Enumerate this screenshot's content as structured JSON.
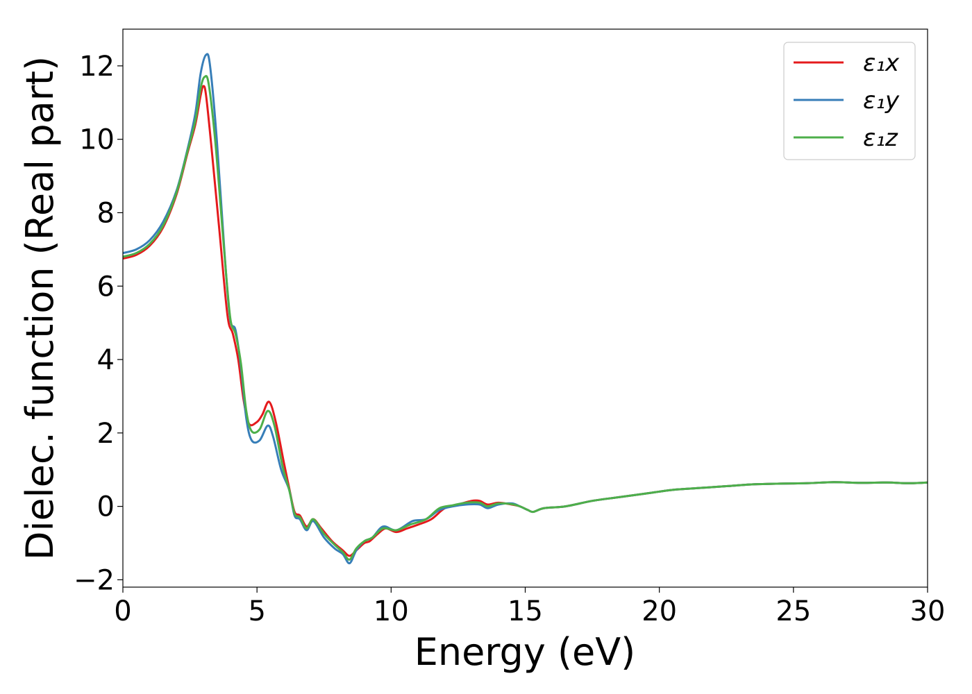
{
  "chart_data": {
    "type": "line",
    "title": "",
    "xlabel": "Energy (eV)",
    "ylabel": "Dielec. function (Real part)",
    "xlim": [
      0,
      30
    ],
    "ylim": [
      -2.2,
      13.0
    ],
    "xticks": [
      0,
      5,
      10,
      15,
      20,
      25,
      30
    ],
    "yticks": [
      -2,
      0,
      2,
      4,
      6,
      8,
      10,
      12
    ],
    "xtick_labels": [
      "0",
      "5",
      "10",
      "15",
      "20",
      "25",
      "30"
    ],
    "ytick_labels": [
      "−2",
      "0",
      "2",
      "4",
      "6",
      "8",
      "10",
      "12"
    ],
    "grid": false,
    "legend_position": "top-right",
    "series": [
      {
        "name": "ε₁x",
        "color": "#e41a1c",
        "points": [
          [
            0,
            6.75
          ],
          [
            0.5,
            6.85
          ],
          [
            1.0,
            7.1
          ],
          [
            1.5,
            7.6
          ],
          [
            2.0,
            8.5
          ],
          [
            2.4,
            9.6
          ],
          [
            2.7,
            10.4
          ],
          [
            2.9,
            11.2
          ],
          [
            3.0,
            11.45
          ],
          [
            3.1,
            11.2
          ],
          [
            3.3,
            9.8
          ],
          [
            3.6,
            7.5
          ],
          [
            3.9,
            5.2
          ],
          [
            4.1,
            4.7
          ],
          [
            4.3,
            4.0
          ],
          [
            4.5,
            2.9
          ],
          [
            4.7,
            2.25
          ],
          [
            5.0,
            2.3
          ],
          [
            5.2,
            2.5
          ],
          [
            5.45,
            2.85
          ],
          [
            5.7,
            2.3
          ],
          [
            6.0,
            1.2
          ],
          [
            6.2,
            0.5
          ],
          [
            6.4,
            -0.15
          ],
          [
            6.6,
            -0.25
          ],
          [
            6.85,
            -0.55
          ],
          [
            7.1,
            -0.35
          ],
          [
            7.4,
            -0.6
          ],
          [
            7.8,
            -0.95
          ],
          [
            8.2,
            -1.2
          ],
          [
            8.45,
            -1.35
          ],
          [
            8.7,
            -1.2
          ],
          [
            9.0,
            -1.0
          ],
          [
            9.2,
            -0.95
          ],
          [
            9.5,
            -0.75
          ],
          [
            9.8,
            -0.6
          ],
          [
            10.2,
            -0.7
          ],
          [
            10.6,
            -0.6
          ],
          [
            11.0,
            -0.5
          ],
          [
            11.5,
            -0.35
          ],
          [
            12.0,
            -0.05
          ],
          [
            12.5,
            0.05
          ],
          [
            13.0,
            0.15
          ],
          [
            13.3,
            0.15
          ],
          [
            13.6,
            0.05
          ],
          [
            14.0,
            0.1
          ],
          [
            14.5,
            0.05
          ],
          [
            14.8,
            0.0
          ],
          [
            15.1,
            -0.1
          ],
          [
            15.3,
            -0.15
          ],
          [
            15.7,
            -0.05
          ],
          [
            16.5,
            0.0
          ],
          [
            17.5,
            0.15
          ],
          [
            18.5,
            0.25
          ],
          [
            19.5,
            0.35
          ],
          [
            20.5,
            0.45
          ],
          [
            21.5,
            0.5
          ],
          [
            22.5,
            0.55
          ],
          [
            23.5,
            0.6
          ],
          [
            24.5,
            0.62
          ],
          [
            25.5,
            0.63
          ],
          [
            26.5,
            0.66
          ],
          [
            27.5,
            0.64
          ],
          [
            28.5,
            0.65
          ],
          [
            29.3,
            0.63
          ],
          [
            30.0,
            0.65
          ]
        ]
      },
      {
        "name": "ε₁y",
        "color": "#377eb8",
        "points": [
          [
            0,
            6.9
          ],
          [
            0.5,
            7.0
          ],
          [
            1.0,
            7.25
          ],
          [
            1.5,
            7.75
          ],
          [
            2.0,
            8.6
          ],
          [
            2.4,
            9.7
          ],
          [
            2.7,
            10.7
          ],
          [
            2.9,
            11.8
          ],
          [
            3.1,
            12.3
          ],
          [
            3.25,
            12.0
          ],
          [
            3.5,
            10.0
          ],
          [
            3.8,
            6.8
          ],
          [
            4.0,
            5.1
          ],
          [
            4.2,
            4.8
          ],
          [
            4.4,
            3.8
          ],
          [
            4.6,
            2.4
          ],
          [
            4.8,
            1.8
          ],
          [
            5.1,
            1.8
          ],
          [
            5.4,
            2.2
          ],
          [
            5.6,
            1.9
          ],
          [
            5.9,
            1.0
          ],
          [
            6.2,
            0.45
          ],
          [
            6.4,
            -0.25
          ],
          [
            6.6,
            -0.35
          ],
          [
            6.85,
            -0.65
          ],
          [
            7.1,
            -0.4
          ],
          [
            7.5,
            -0.85
          ],
          [
            7.9,
            -1.15
          ],
          [
            8.2,
            -1.3
          ],
          [
            8.45,
            -1.55
          ],
          [
            8.7,
            -1.2
          ],
          [
            9.0,
            -0.95
          ],
          [
            9.3,
            -0.85
          ],
          [
            9.7,
            -0.55
          ],
          [
            10.2,
            -0.65
          ],
          [
            10.8,
            -0.4
          ],
          [
            11.3,
            -0.35
          ],
          [
            11.8,
            -0.1
          ],
          [
            12.3,
            0.0
          ],
          [
            12.8,
            0.05
          ],
          [
            13.3,
            0.05
          ],
          [
            13.6,
            -0.05
          ],
          [
            14.0,
            0.05
          ],
          [
            14.5,
            0.08
          ],
          [
            14.8,
            0.0
          ],
          [
            15.1,
            -0.1
          ],
          [
            15.3,
            -0.15
          ],
          [
            15.7,
            -0.05
          ],
          [
            16.5,
            0.0
          ],
          [
            17.5,
            0.15
          ],
          [
            18.5,
            0.25
          ],
          [
            19.5,
            0.35
          ],
          [
            20.5,
            0.45
          ],
          [
            21.5,
            0.5
          ],
          [
            22.5,
            0.55
          ],
          [
            23.5,
            0.6
          ],
          [
            24.5,
            0.62
          ],
          [
            25.5,
            0.63
          ],
          [
            26.5,
            0.66
          ],
          [
            27.5,
            0.64
          ],
          [
            28.5,
            0.65
          ],
          [
            29.3,
            0.63
          ],
          [
            30.0,
            0.65
          ]
        ]
      },
      {
        "name": "ε₁z",
        "color": "#4daf4a",
        "points": [
          [
            0,
            6.8
          ],
          [
            0.5,
            6.9
          ],
          [
            1.0,
            7.15
          ],
          [
            1.5,
            7.65
          ],
          [
            2.0,
            8.55
          ],
          [
            2.4,
            9.65
          ],
          [
            2.7,
            10.5
          ],
          [
            2.9,
            11.4
          ],
          [
            3.05,
            11.7
          ],
          [
            3.2,
            11.5
          ],
          [
            3.45,
            9.9
          ],
          [
            3.75,
            7.2
          ],
          [
            4.0,
            5.15
          ],
          [
            4.2,
            4.7
          ],
          [
            4.4,
            3.9
          ],
          [
            4.6,
            2.6
          ],
          [
            4.8,
            2.05
          ],
          [
            5.1,
            2.1
          ],
          [
            5.4,
            2.6
          ],
          [
            5.65,
            2.2
          ],
          [
            5.95,
            1.1
          ],
          [
            6.2,
            0.45
          ],
          [
            6.4,
            -0.2
          ],
          [
            6.6,
            -0.3
          ],
          [
            6.85,
            -0.6
          ],
          [
            7.1,
            -0.35
          ],
          [
            7.5,
            -0.75
          ],
          [
            7.9,
            -1.05
          ],
          [
            8.2,
            -1.25
          ],
          [
            8.45,
            -1.45
          ],
          [
            8.7,
            -1.15
          ],
          [
            9.0,
            -0.95
          ],
          [
            9.3,
            -0.85
          ],
          [
            9.7,
            -0.6
          ],
          [
            10.2,
            -0.65
          ],
          [
            10.7,
            -0.5
          ],
          [
            11.3,
            -0.35
          ],
          [
            11.8,
            -0.05
          ],
          [
            12.3,
            0.03
          ],
          [
            12.8,
            0.1
          ],
          [
            13.3,
            0.1
          ],
          [
            13.6,
            0.0
          ],
          [
            14.0,
            0.08
          ],
          [
            14.5,
            0.06
          ],
          [
            14.8,
            0.0
          ],
          [
            15.1,
            -0.1
          ],
          [
            15.3,
            -0.15
          ],
          [
            15.7,
            -0.05
          ],
          [
            16.5,
            0.0
          ],
          [
            17.5,
            0.15
          ],
          [
            18.5,
            0.25
          ],
          [
            19.5,
            0.35
          ],
          [
            20.5,
            0.45
          ],
          [
            21.5,
            0.5
          ],
          [
            22.5,
            0.55
          ],
          [
            23.5,
            0.6
          ],
          [
            24.5,
            0.62
          ],
          [
            25.5,
            0.63
          ],
          [
            26.5,
            0.66
          ],
          [
            27.5,
            0.64
          ],
          [
            28.5,
            0.65
          ],
          [
            29.3,
            0.63
          ],
          [
            30.0,
            0.65
          ]
        ]
      }
    ]
  }
}
